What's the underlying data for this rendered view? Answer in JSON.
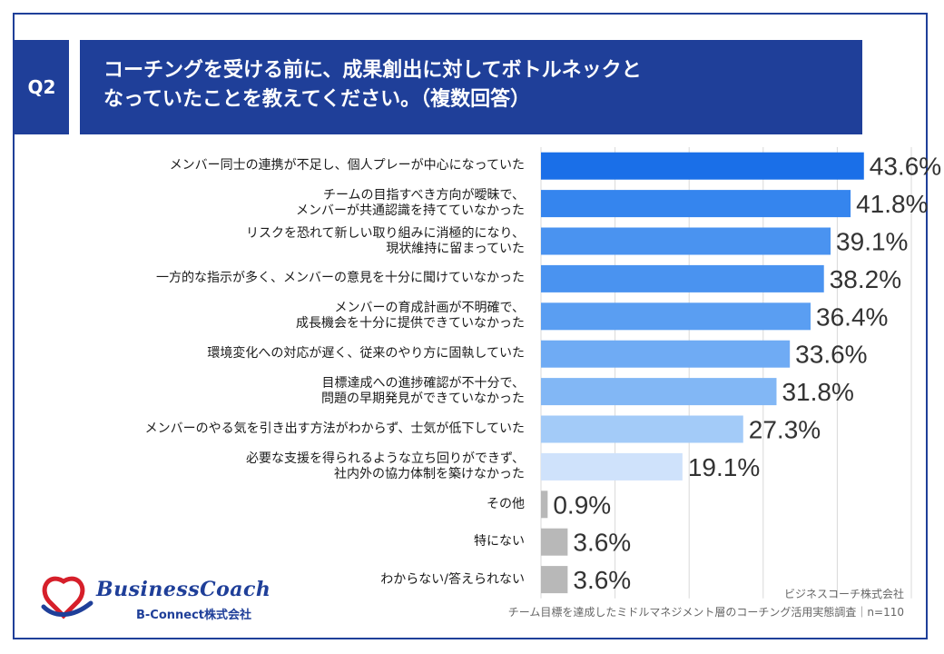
{
  "header": {
    "badge": "Q2",
    "title_line1": "コーチングを受ける前に、成果創出に対してボトルネックと",
    "title_line2": "なっていたことを教えてください。（複数回答）"
  },
  "chart_data": {
    "type": "bar",
    "orientation": "horizontal",
    "categories": [
      [
        "メンバー同士の連携が不足し、個人プレーが中心になっていた"
      ],
      [
        "チームの目指すべき方向が曖昧で、",
        "メンバーが共通認識を持てていなかった"
      ],
      [
        "リスクを恐れて新しい取り組みに消極的になり、",
        "現状維持に留まっていた"
      ],
      [
        "一方的な指示が多く、メンバーの意見を十分に聞けていなかった"
      ],
      [
        "メンバーの育成計画が不明確で、",
        "成長機会を十分に提供できていなかった"
      ],
      [
        "環境変化への対応が遅く、従来のやり方に固執していた"
      ],
      [
        "目標達成への進捗確認が不十分で、",
        "問題の早期発見ができていなかった"
      ],
      [
        "メンバーのやる気を引き出す方法がわからず、士気が低下していた"
      ],
      [
        "必要な支援を得られるような立ち回りができず、",
        "社内外の協力体制を築けなかった"
      ],
      [
        "その他"
      ],
      [
        "特にない"
      ],
      [
        "わからない/答えられない"
      ]
    ],
    "values": [
      43.6,
      41.8,
      39.1,
      38.2,
      36.4,
      33.6,
      31.8,
      27.3,
      19.1,
      0.9,
      3.6,
      3.6
    ],
    "value_labels": [
      "43.6%",
      "41.8%",
      "39.1%",
      "38.2%",
      "36.4%",
      "33.6%",
      "31.8%",
      "27.3%",
      "19.1%",
      "0.9%",
      "3.6%",
      "3.6%"
    ],
    "colors": [
      "#1a6fe8",
      "#3585ee",
      "#4a93f0",
      "#4a93f0",
      "#5a9ef2",
      "#6fabf4",
      "#82b7f5",
      "#a3cbf8",
      "#cfe2fb",
      "#b8b8b8",
      "#b8b8b8",
      "#b8b8b8"
    ],
    "xlim": [
      0,
      50
    ],
    "grid": true
  },
  "footer": {
    "brand_name": "BusinessCoach",
    "brand_sub": "B-Connect株式会社",
    "source_line1": "ビジネスコーチ株式会社",
    "source_line2": "チーム目標を達成したミドルマネジメント層のコーチング活用実態調査｜n=110"
  }
}
